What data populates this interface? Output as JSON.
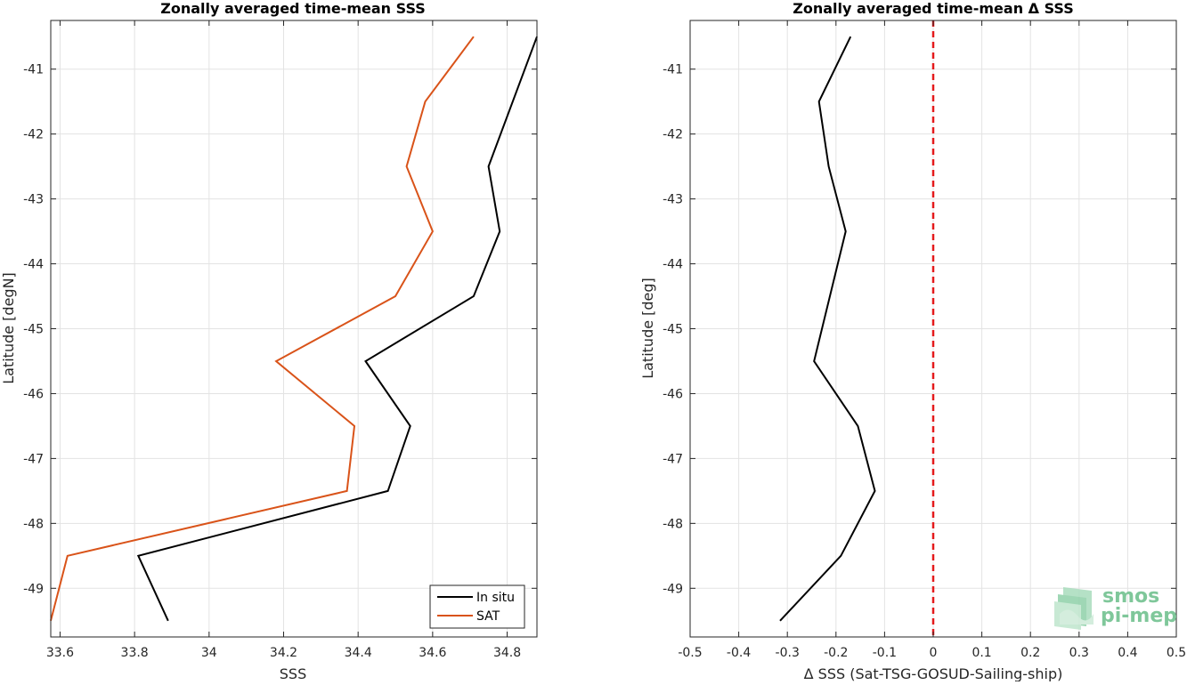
{
  "chart_data": [
    {
      "type": "line",
      "title": "Zonally averaged time-mean SSS",
      "xlabel": "SSS",
      "ylabel": "Latitude [degN]",
      "xlim": [
        33.575,
        34.88
      ],
      "ylim": [
        -49.75,
        -40.25
      ],
      "xticks": [
        33.6,
        33.8,
        34,
        34.2,
        34.4,
        34.6,
        34.8
      ],
      "xtick_labels": [
        "33.6",
        "33.8",
        "34",
        "34.2",
        "34.4",
        "34.6",
        "34.8"
      ],
      "yticks": [
        -49,
        -48,
        -47,
        -46,
        -45,
        -44,
        -43,
        -42,
        -41
      ],
      "ytick_labels": [
        "-49",
        "-48",
        "-47",
        "-46",
        "-45",
        "-44",
        "-43",
        "-42",
        "-41"
      ],
      "grid": true,
      "legend_position": "bottom-right",
      "series": [
        {
          "name": "In situ",
          "color": "#000000",
          "points": [
            [
              34.88,
              -40.5
            ],
            [
              34.75,
              -42.5
            ],
            [
              34.78,
              -43.5
            ],
            [
              34.71,
              -44.5
            ],
            [
              34.42,
              -45.5
            ],
            [
              34.54,
              -46.5
            ],
            [
              34.48,
              -47.5
            ],
            [
              33.81,
              -48.5
            ],
            [
              33.89,
              -49.5
            ]
          ]
        },
        {
          "name": "SAT",
          "color": "#d95319",
          "points": [
            [
              34.71,
              -40.5
            ],
            [
              34.58,
              -41.5
            ],
            [
              34.53,
              -42.5
            ],
            [
              34.6,
              -43.5
            ],
            [
              34.5,
              -44.5
            ],
            [
              34.18,
              -45.5
            ],
            [
              34.39,
              -46.5
            ],
            [
              34.37,
              -47.5
            ],
            [
              33.62,
              -48.5
            ],
            [
              33.575,
              -49.5
            ]
          ]
        }
      ]
    },
    {
      "type": "line",
      "title": "Zonally averaged time-mean Δ SSS",
      "xlabel": "Δ SSS (Sat-TSG-GOSUD-Sailing-ship)",
      "ylabel": "Latitude [deg]",
      "xlim": [
        -0.5,
        0.5
      ],
      "ylim": [
        -49.75,
        -40.25
      ],
      "xticks": [
        -0.5,
        -0.4,
        -0.3,
        -0.2,
        -0.1,
        0,
        0.1,
        0.2,
        0.3,
        0.4,
        0.5
      ],
      "xtick_labels": [
        "-0.5",
        "-0.4",
        "-0.3",
        "-0.2",
        "-0.1",
        "0",
        "0.1",
        "0.2",
        "0.3",
        "0.4",
        "0.5"
      ],
      "yticks": [
        -49,
        -48,
        -47,
        -46,
        -45,
        -44,
        -43,
        -42,
        -41
      ],
      "ytick_labels": [
        "-49",
        "-48",
        "-47",
        "-46",
        "-45",
        "-44",
        "-43",
        "-42",
        "-41"
      ],
      "grid": true,
      "reference_line": {
        "x": 0,
        "color": "#e41a1c",
        "style": "dashed"
      },
      "series": [
        {
          "color": "#000000",
          "points": [
            [
              -0.17,
              -40.5
            ],
            [
              -0.235,
              -41.5
            ],
            [
              -0.215,
              -42.5
            ],
            [
              -0.18,
              -43.5
            ],
            [
              -0.245,
              -45.5
            ],
            [
              -0.155,
              -46.5
            ],
            [
              -0.12,
              -47.5
            ],
            [
              -0.19,
              -48.5
            ],
            [
              -0.315,
              -49.5
            ]
          ]
        }
      ]
    }
  ],
  "watermark": {
    "line1": "smos",
    "line2": "pi-mep",
    "color": "#7fc79a"
  }
}
